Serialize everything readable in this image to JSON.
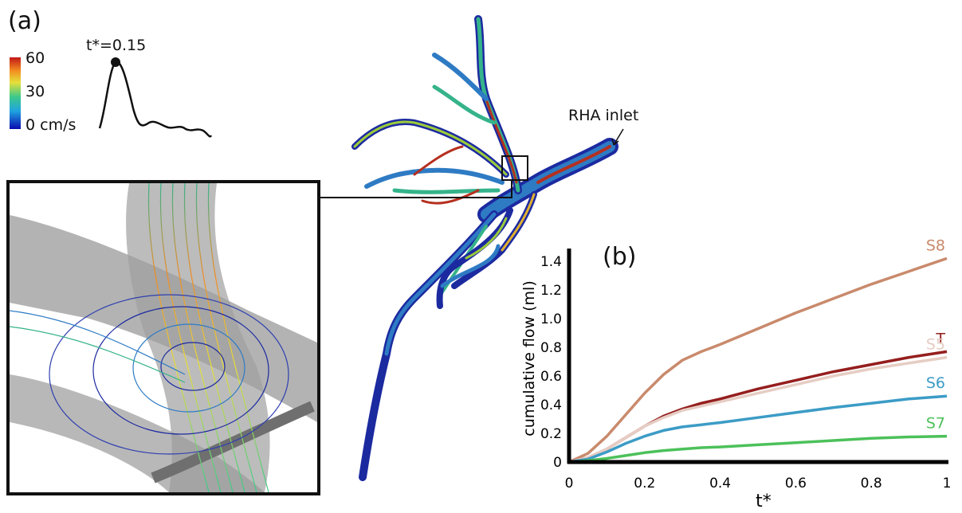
{
  "panel_a": {
    "label": "(a)",
    "colorbar": {
      "ticks": [
        "60",
        "30",
        "0 cm/s"
      ],
      "colors": [
        "#0a0ab0",
        "#1fa3e0",
        "#3cc98a",
        "#e6e03a",
        "#f28a20",
        "#c21818"
      ]
    },
    "waveform_time_label": "t*=0.15",
    "inlet_label": "RHA inlet",
    "vessel_colors": [
      "#1c2aa0",
      "#2e7bc4",
      "#35b38a",
      "#9ccb3b",
      "#e0b030",
      "#b5301f"
    ]
  },
  "panel_b": {
    "label": "(b)"
  },
  "chart_data": {
    "type": "line",
    "xlabel": "t*",
    "ylabel": "cumulative flow (ml)",
    "xlim": [
      0,
      1
    ],
    "ylim": [
      0,
      1.5
    ],
    "xticks": [
      "0",
      "0.2",
      "0.4",
      "0.6",
      "0.8",
      "1"
    ],
    "yticks": [
      "0",
      "0.2",
      "0.4",
      "0.6",
      "0.8",
      "1.0",
      "1.2",
      "1.4"
    ],
    "x": [
      0,
      0.05,
      0.1,
      0.15,
      0.2,
      0.25,
      0.3,
      0.35,
      0.4,
      0.5,
      0.6,
      0.7,
      0.8,
      0.9,
      1.0
    ],
    "series": [
      {
        "name": "S8",
        "color": "#c98a6c",
        "values": [
          0,
          0.06,
          0.18,
          0.33,
          0.48,
          0.61,
          0.71,
          0.77,
          0.82,
          0.93,
          1.04,
          1.14,
          1.24,
          1.33,
          1.42
        ]
      },
      {
        "name": "T",
        "color": "#951e1e",
        "values": [
          0,
          0.03,
          0.09,
          0.17,
          0.25,
          0.32,
          0.37,
          0.41,
          0.44,
          0.51,
          0.57,
          0.63,
          0.68,
          0.73,
          0.77
        ]
      },
      {
        "name": "S5",
        "color": "#e6cdc4",
        "values": [
          0,
          0.03,
          0.09,
          0.17,
          0.25,
          0.31,
          0.36,
          0.39,
          0.42,
          0.48,
          0.54,
          0.6,
          0.65,
          0.69,
          0.73
        ]
      },
      {
        "name": "S6",
        "color": "#3c9cc6",
        "values": [
          0,
          0.02,
          0.07,
          0.13,
          0.18,
          0.22,
          0.245,
          0.26,
          0.275,
          0.31,
          0.345,
          0.38,
          0.41,
          0.44,
          0.46
        ]
      },
      {
        "name": "S7",
        "color": "#4cc15a",
        "values": [
          0,
          0.01,
          0.025,
          0.045,
          0.065,
          0.08,
          0.09,
          0.1,
          0.105,
          0.12,
          0.135,
          0.15,
          0.165,
          0.175,
          0.18
        ]
      }
    ]
  }
}
